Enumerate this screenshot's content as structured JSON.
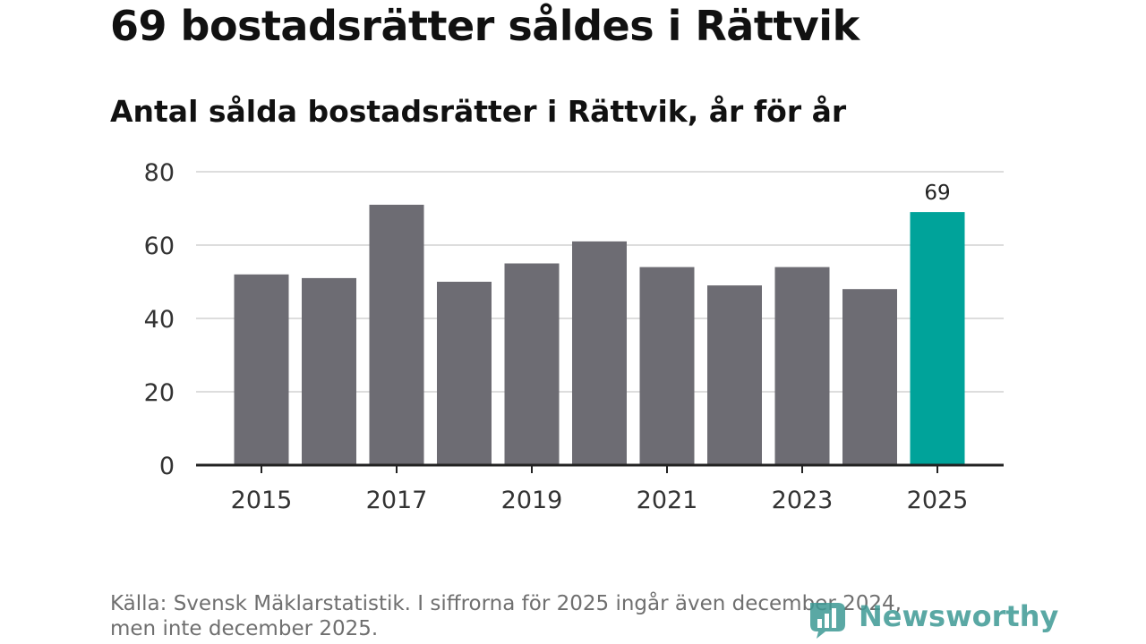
{
  "title": "69 bostadsrätter såldes i Rättvik",
  "subtitle": "Antal sålda bostadsrätter i Rättvik, år för år",
  "source": {
    "line1": "Källa: Svensk Mäklarstatistik. I siffrorna för 2025 ingår även december 2024,",
    "line2": "men inte december 2025."
  },
  "logo": {
    "text": "Newsworthy",
    "icon": "bar-chart-icon"
  },
  "colors": {
    "bar": "#6d6c73",
    "highlight": "#00a39a",
    "grid": "#dddddd",
    "axis": "#222222",
    "logo": "#3e9a95"
  },
  "chart_data": {
    "type": "bar",
    "categories": [
      "2015",
      "2016",
      "2017",
      "2018",
      "2019",
      "2020",
      "2021",
      "2022",
      "2023",
      "2024",
      "2025"
    ],
    "values": [
      52,
      51,
      71,
      50,
      55,
      61,
      54,
      49,
      54,
      48,
      69
    ],
    "highlight_category": "2025",
    "data_labels": [
      {
        "category": "2025",
        "label": "69"
      }
    ],
    "x_tick_labels": [
      "2015",
      "2017",
      "2019",
      "2021",
      "2023",
      "2025"
    ],
    "y_ticks": [
      0,
      20,
      40,
      60,
      80
    ],
    "ylim": [
      0,
      80
    ],
    "grid": true,
    "xlabel": "",
    "ylabel": ""
  }
}
